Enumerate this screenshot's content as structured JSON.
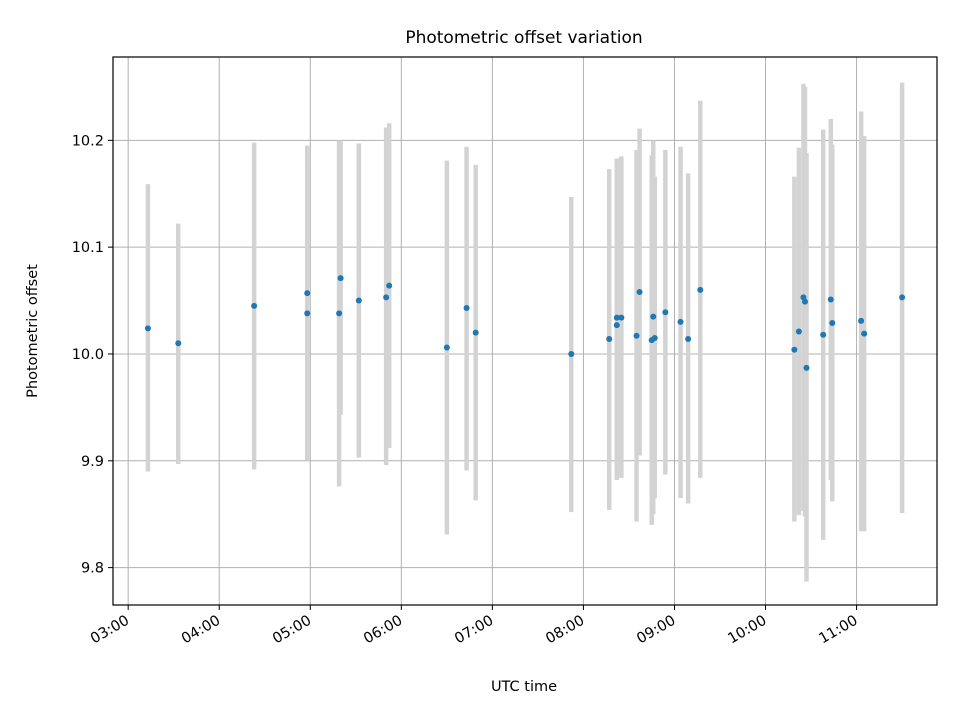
{
  "chart_data": {
    "type": "scatter",
    "title": "Photometric offset variation",
    "xlabel": "UTC time",
    "ylabel": "Photometric offset",
    "xlim": [
      "02:50",
      "11:53"
    ],
    "ylim": [
      9.765,
      10.278
    ],
    "grid": true,
    "x_ticks": [
      "03:00",
      "04:00",
      "05:00",
      "06:00",
      "07:00",
      "08:00",
      "09:00",
      "10:00",
      "11:00"
    ],
    "y_ticks": [
      "9.8",
      "9.9",
      "10.0",
      "10.1",
      "10.2"
    ],
    "colors": {
      "point": "#1f77b4",
      "errorbar": "#d3d3d3",
      "grid": "#b0b0b0"
    },
    "series": [
      {
        "points": [
          {
            "x": "03:13",
            "y": 10.024,
            "ylow": 9.89,
            "yhigh": 10.159
          },
          {
            "x": "03:33",
            "y": 10.01,
            "ylow": 9.897,
            "yhigh": 10.122
          },
          {
            "x": "04:23",
            "y": 10.045,
            "ylow": 9.892,
            "yhigh": 10.198
          },
          {
            "x": "04:58",
            "y": 10.057,
            "ylow": 9.918,
            "yhigh": 10.195
          },
          {
            "x": "04:58",
            "y": 10.038,
            "ylow": 9.9,
            "yhigh": 10.176
          },
          {
            "x": "05:19",
            "y": 10.038,
            "ylow": 9.876,
            "yhigh": 10.2
          },
          {
            "x": "05:20",
            "y": 10.071,
            "ylow": 9.943,
            "yhigh": 10.199
          },
          {
            "x": "05:32",
            "y": 10.05,
            "ylow": 9.903,
            "yhigh": 10.197
          },
          {
            "x": "05:50",
            "y": 10.053,
            "ylow": 9.896,
            "yhigh": 10.212
          },
          {
            "x": "05:52",
            "y": 10.064,
            "ylow": 9.912,
            "yhigh": 10.216
          },
          {
            "x": "06:30",
            "y": 10.006,
            "ylow": 9.831,
            "yhigh": 10.181
          },
          {
            "x": "06:43",
            "y": 10.043,
            "ylow": 9.891,
            "yhigh": 10.194
          },
          {
            "x": "06:49",
            "y": 10.02,
            "ylow": 9.863,
            "yhigh": 10.177
          },
          {
            "x": "07:52",
            "y": 10.0,
            "ylow": 9.852,
            "yhigh": 10.147
          },
          {
            "x": "08:17",
            "y": 10.014,
            "ylow": 9.854,
            "yhigh": 10.173
          },
          {
            "x": "08:22",
            "y": 10.027,
            "ylow": 9.882,
            "yhigh": 10.183
          },
          {
            "x": "08:22",
            "y": 10.034,
            "ylow": 9.886,
            "yhigh": 10.182
          },
          {
            "x": "08:25",
            "y": 10.034,
            "ylow": 9.884,
            "yhigh": 10.185
          },
          {
            "x": "08:35",
            "y": 10.017,
            "ylow": 9.843,
            "yhigh": 10.191
          },
          {
            "x": "08:37",
            "y": 10.058,
            "ylow": 9.905,
            "yhigh": 10.211
          },
          {
            "x": "08:45",
            "y": 10.013,
            "ylow": 9.84,
            "yhigh": 10.186
          },
          {
            "x": "08:46",
            "y": 10.035,
            "ylow": 9.85,
            "yhigh": 10.2
          },
          {
            "x": "08:47",
            "y": 10.015,
            "ylow": 9.865,
            "yhigh": 10.166
          },
          {
            "x": "08:54",
            "y": 10.039,
            "ylow": 9.887,
            "yhigh": 10.191
          },
          {
            "x": "09:04",
            "y": 10.03,
            "ylow": 9.865,
            "yhigh": 10.194
          },
          {
            "x": "09:09",
            "y": 10.014,
            "ylow": 9.86,
            "yhigh": 10.169
          },
          {
            "x": "09:17",
            "y": 10.06,
            "ylow": 9.884,
            "yhigh": 10.237
          },
          {
            "x": "10:19",
            "y": 10.004,
            "ylow": 9.843,
            "yhigh": 10.166
          },
          {
            "x": "10:22",
            "y": 10.021,
            "ylow": 9.849,
            "yhigh": 10.193
          },
          {
            "x": "10:25",
            "y": 10.053,
            "ylow": 9.853,
            "yhigh": 10.253
          },
          {
            "x": "10:26",
            "y": 10.049,
            "ylow": 9.848,
            "yhigh": 10.25
          },
          {
            "x": "10:27",
            "y": 9.987,
            "ylow": 9.787,
            "yhigh": 10.188
          },
          {
            "x": "10:38",
            "y": 10.018,
            "ylow": 9.826,
            "yhigh": 10.21
          },
          {
            "x": "10:43",
            "y": 10.051,
            "ylow": 9.882,
            "yhigh": 10.22
          },
          {
            "x": "10:44",
            "y": 10.029,
            "ylow": 9.862,
            "yhigh": 10.196
          },
          {
            "x": "11:03",
            "y": 10.031,
            "ylow": 9.834,
            "yhigh": 10.227
          },
          {
            "x": "11:05",
            "y": 10.019,
            "ylow": 9.834,
            "yhigh": 10.204
          },
          {
            "x": "11:30",
            "y": 10.053,
            "ylow": 9.851,
            "yhigh": 10.254
          }
        ]
      }
    ]
  }
}
